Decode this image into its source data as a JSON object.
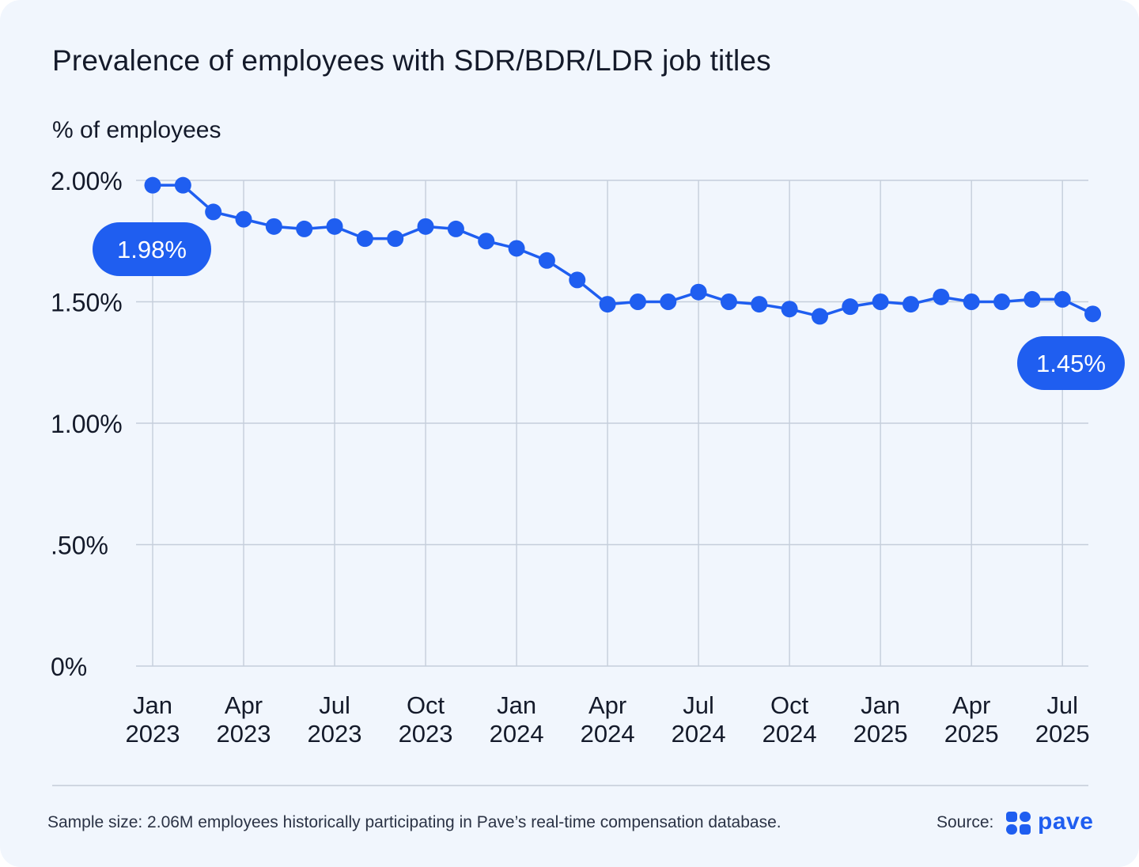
{
  "title": "Prevalence of employees with SDR/BDR/LDR job titles",
  "ylabel": "% of employees",
  "footnote": "Sample size: 2.06M employees historically participating in Pave’s real-time compensation database.",
  "source_label": "Source:",
  "logo_text": "pave",
  "colors": {
    "accent": "#1f5ef0",
    "grid": "#c5cedb",
    "background": "#f1f6fd",
    "text": "#141a2a"
  },
  "chart_data": {
    "type": "line",
    "title": "Prevalence of employees with SDR/BDR/LDR job titles",
    "ylabel": "% of employees",
    "xlabel": "",
    "ylim": [
      0,
      2.0
    ],
    "grid": true,
    "y_ticks": [
      {
        "value": 2.0,
        "label": "2.00%"
      },
      {
        "value": 1.5,
        "label": "1.50%"
      },
      {
        "value": 1.0,
        "label": "1.00%"
      },
      {
        "value": 0.5,
        "label": ".50%"
      },
      {
        "value": 0.0,
        "label": "0%"
      }
    ],
    "x_ticks": [
      {
        "month": "2023-01",
        "line1": "Jan",
        "line2": "2023"
      },
      {
        "month": "2023-04",
        "line1": "Apr",
        "line2": "2023"
      },
      {
        "month": "2023-07",
        "line1": "Jul",
        "line2": "2023"
      },
      {
        "month": "2023-10",
        "line1": "Oct",
        "line2": "2023"
      },
      {
        "month": "2024-01",
        "line1": "Jan",
        "line2": "2024"
      },
      {
        "month": "2024-04",
        "line1": "Apr",
        "line2": "2024"
      },
      {
        "month": "2024-07",
        "line1": "Jul",
        "line2": "2024"
      },
      {
        "month": "2024-10",
        "line1": "Oct",
        "line2": "2024"
      },
      {
        "month": "2025-01",
        "line1": "Jan",
        "line2": "2025"
      },
      {
        "month": "2025-04",
        "line1": "Apr",
        "line2": "2025"
      },
      {
        "month": "2025-07",
        "line1": "Jul",
        "line2": "2025"
      }
    ],
    "x": [
      "2023-01",
      "2023-02",
      "2023-03",
      "2023-04",
      "2023-05",
      "2023-06",
      "2023-07",
      "2023-08",
      "2023-09",
      "2023-10",
      "2023-11",
      "2023-12",
      "2024-01",
      "2024-02",
      "2024-03",
      "2024-04",
      "2024-05",
      "2024-06",
      "2024-07",
      "2024-08",
      "2024-09",
      "2024-10",
      "2024-11",
      "2024-12",
      "2025-01",
      "2025-02",
      "2025-03",
      "2025-04",
      "2025-05",
      "2025-06",
      "2025-07",
      "2025-08"
    ],
    "series": [
      {
        "values": [
          1.98,
          1.98,
          1.87,
          1.84,
          1.81,
          1.8,
          1.81,
          1.76,
          1.76,
          1.81,
          1.8,
          1.75,
          1.72,
          1.67,
          1.59,
          1.49,
          1.5,
          1.5,
          1.54,
          1.5,
          1.49,
          1.47,
          1.44,
          1.48,
          1.5,
          1.49,
          1.52,
          1.5,
          1.5,
          1.51,
          1.51,
          1.45
        ]
      }
    ],
    "annotations": [
      {
        "month": "2023-01",
        "label": "1.98%"
      },
      {
        "month": "2025-08",
        "label": "1.45%"
      }
    ]
  }
}
